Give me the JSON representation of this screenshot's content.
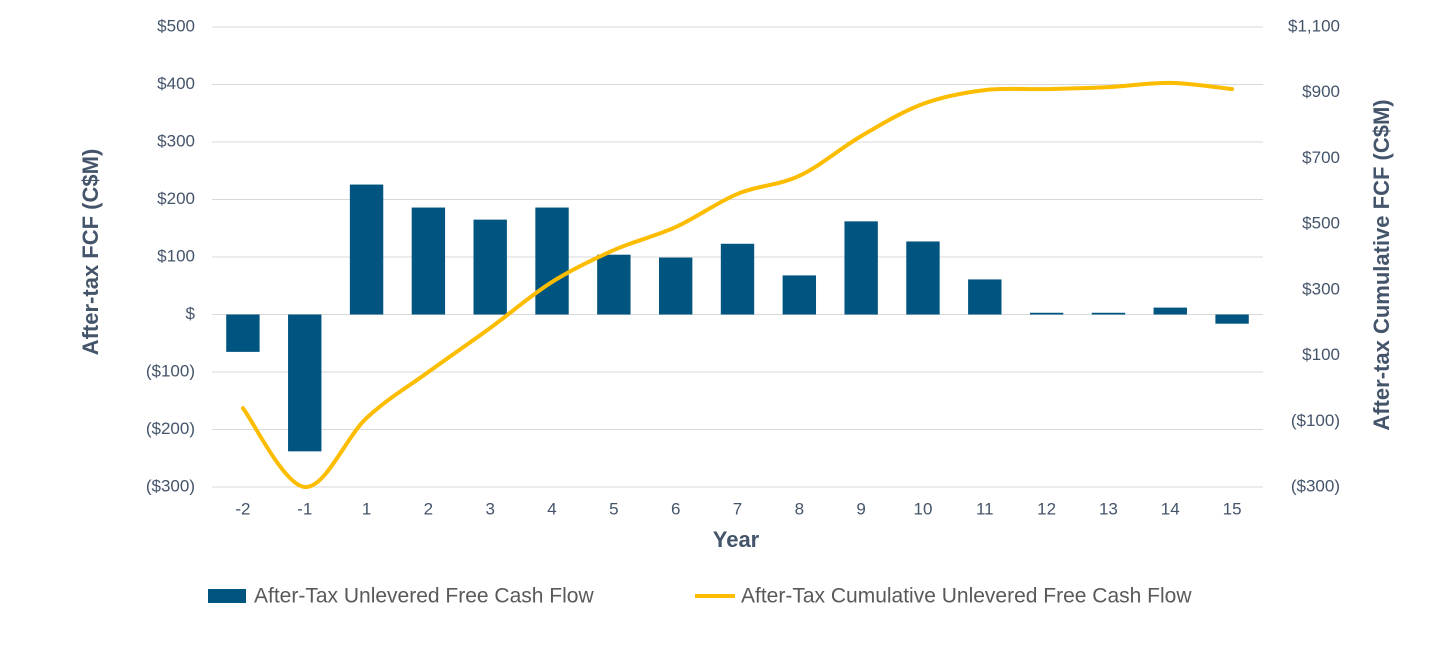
{
  "chart_data": {
    "type": "bar_line",
    "x_label": "Year",
    "y_label": "After-tax FCF (C$M)",
    "y2_label": "After-tax Cumulative FCF (C$M)",
    "categories": [
      "-2",
      "-1",
      "1",
      "2",
      "3",
      "4",
      "5",
      "6",
      "7",
      "8",
      "9",
      "10",
      "11",
      "12",
      "13",
      "14",
      "15"
    ],
    "series": [
      {
        "name": "After-Tax Unlevered Free Cash Flow",
        "type": "bar",
        "color": "#005480",
        "values": [
          -65,
          -238,
          226,
          186,
          165,
          186,
          104,
          99,
          123,
          68,
          162,
          127,
          61,
          3,
          3,
          12,
          -16
        ]
      },
      {
        "name": "After-Tax Cumulative Unlevered Free Cash Flow",
        "type": "line",
        "axis": "y2",
        "color": "#fcbc00",
        "values": [
          -60,
          -300,
          -90,
          50,
          184,
          324,
          421,
          491,
          592,
          647,
          768,
          866,
          908,
          911,
          917,
          930,
          911
        ]
      }
    ],
    "ylim": [
      -300,
      500
    ],
    "yticks": [
      {
        "value": -300,
        "label": "($300)"
      },
      {
        "value": -200,
        "label": "($200)"
      },
      {
        "value": -100,
        "label": "($100)"
      },
      {
        "value": 0,
        "label": "$"
      },
      {
        "value": 100,
        "label": "$100"
      },
      {
        "value": 200,
        "label": "$200"
      },
      {
        "value": 300,
        "label": "$300"
      },
      {
        "value": 400,
        "label": "$400"
      },
      {
        "value": 500,
        "label": "$500"
      }
    ],
    "y2lim": [
      -300,
      1100
    ],
    "y2ticks": [
      {
        "value": -300,
        "label": "($300)"
      },
      {
        "value": -100,
        "label": "($100)"
      },
      {
        "value": 100,
        "label": "$100"
      },
      {
        "value": 300,
        "label": "$300"
      },
      {
        "value": 500,
        "label": "$500"
      },
      {
        "value": 700,
        "label": "$700"
      },
      {
        "value": 900,
        "label": "$900"
      },
      {
        "value": 1100,
        "label": "$1,100"
      }
    ],
    "grid": true
  }
}
